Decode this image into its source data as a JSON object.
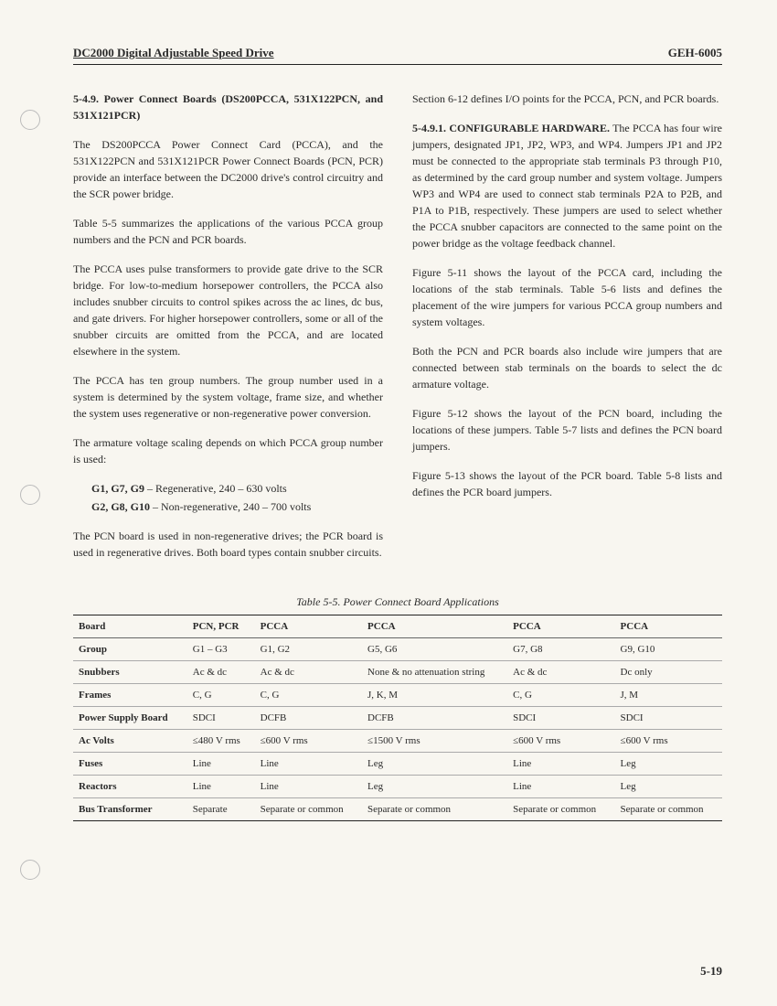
{
  "header": {
    "left": "DC2000 Digital Adjustable Speed Drive",
    "right": "GEH-6005"
  },
  "left_col": {
    "section_title": "5-4.9. Power Connect Boards (DS200PCCA, 531X122PCN, and 531X121PCR)",
    "p1": "The DS200PCCA Power Connect Card (PCCA), and the 531X122PCN and 531X121PCR Power Connect Boards (PCN, PCR) provide an interface between the DC2000 drive's control circuitry and the SCR power bridge.",
    "p2": "Table 5-5 summarizes the applications of the various PCCA group numbers and the PCN and PCR boards.",
    "p3": "The PCCA uses pulse transformers to provide gate drive to the SCR bridge. For low-to-medium horsepower controllers, the PCCA also includes snubber circuits to control spikes across the ac lines, dc bus, and gate drivers. For higher horsepower controllers, some or all of the snubber circuits are omitted from the PCCA, and are located elsewhere in the system.",
    "p4": "The PCCA has ten group numbers. The group number used in a system is determined by the system voltage, frame size, and whether the system uses regenerative or non-regenerative power conversion.",
    "p5": "The armature voltage scaling depends on which PCCA group number is used:",
    "volt1_b": "G1, G7, G9",
    "volt1_t": " – Regenerative, 240 – 630 volts",
    "volt2_b": "G2, G8, G10",
    "volt2_t": " – Non-regenerative, 240 – 700 volts",
    "p6": "The PCN board is used in non-regenerative drives; the PCR board is used in regenerative drives. Both board types contain snubber circuits."
  },
  "right_col": {
    "p1": "Section 6-12 defines I/O points for the PCCA, PCN, and PCR boards.",
    "sub_b": "5-4.9.1. CONFIGURABLE HARDWARE.",
    "sub_t": " The PCCA has four wire jumpers, designated JP1, JP2, WP3, and WP4. Jumpers JP1 and JP2 must be connected to the appropriate stab terminals P3 through P10, as determined by the card group number and system voltage. Jumpers WP3 and WP4 are used to connect stab terminals P2A to P2B, and P1A to P1B, respectively. These jumpers are used to select whether the PCCA snubber capacitors are connected to the same point on the power bridge as the voltage feedback channel.",
    "p3": "Figure 5-11 shows the layout of the PCCA card, including the locations of the stab terminals. Table 5-6 lists and defines the placement of the wire jumpers for various PCCA group numbers and system voltages.",
    "p4": "Both the PCN and PCR boards also include wire jumpers that are connected between stab terminals on the boards to select the dc armature voltage.",
    "p5": "Figure 5-12 shows the layout of the PCN board, including the locations of these jumpers. Table 5-7 lists and defines the PCN board jumpers.",
    "p6": "Figure 5-13 shows the layout of the PCR board. Table 5-8 lists and defines the PCR board jumpers."
  },
  "table": {
    "caption": "Table 5-5. Power Connect Board Applications",
    "columns": [
      "Board",
      "PCN, PCR",
      "PCCA",
      "PCCA",
      "PCCA",
      "PCCA"
    ],
    "rows": [
      [
        "Group",
        "G1 – G3",
        "G1, G2",
        "G5, G6",
        "G7, G8",
        "G9, G10"
      ],
      [
        "Snubbers",
        "Ac & dc",
        "Ac & dc",
        "None & no attenuation string",
        "Ac & dc",
        "Dc only"
      ],
      [
        "Frames",
        "C, G",
        "C, G",
        "J, K, M",
        "C, G",
        "J, M"
      ],
      [
        "Power Supply Board",
        "SDCI",
        "DCFB",
        "DCFB",
        "SDCI",
        "SDCI"
      ],
      [
        "Ac Volts",
        "≤480 V rms",
        "≤600 V rms",
        "≤1500 V rms",
        "≤600 V rms",
        "≤600 V rms"
      ],
      [
        "Fuses",
        "Line",
        "Line",
        "Leg",
        "Line",
        "Leg"
      ],
      [
        "Reactors",
        "Line",
        "Line",
        "Leg",
        "Line",
        "Leg"
      ],
      [
        "Bus Transformer",
        "Separate",
        "Separate or common",
        "Separate or common",
        "Separate or common",
        "Separate or common"
      ]
    ]
  },
  "page_number": "5-19"
}
